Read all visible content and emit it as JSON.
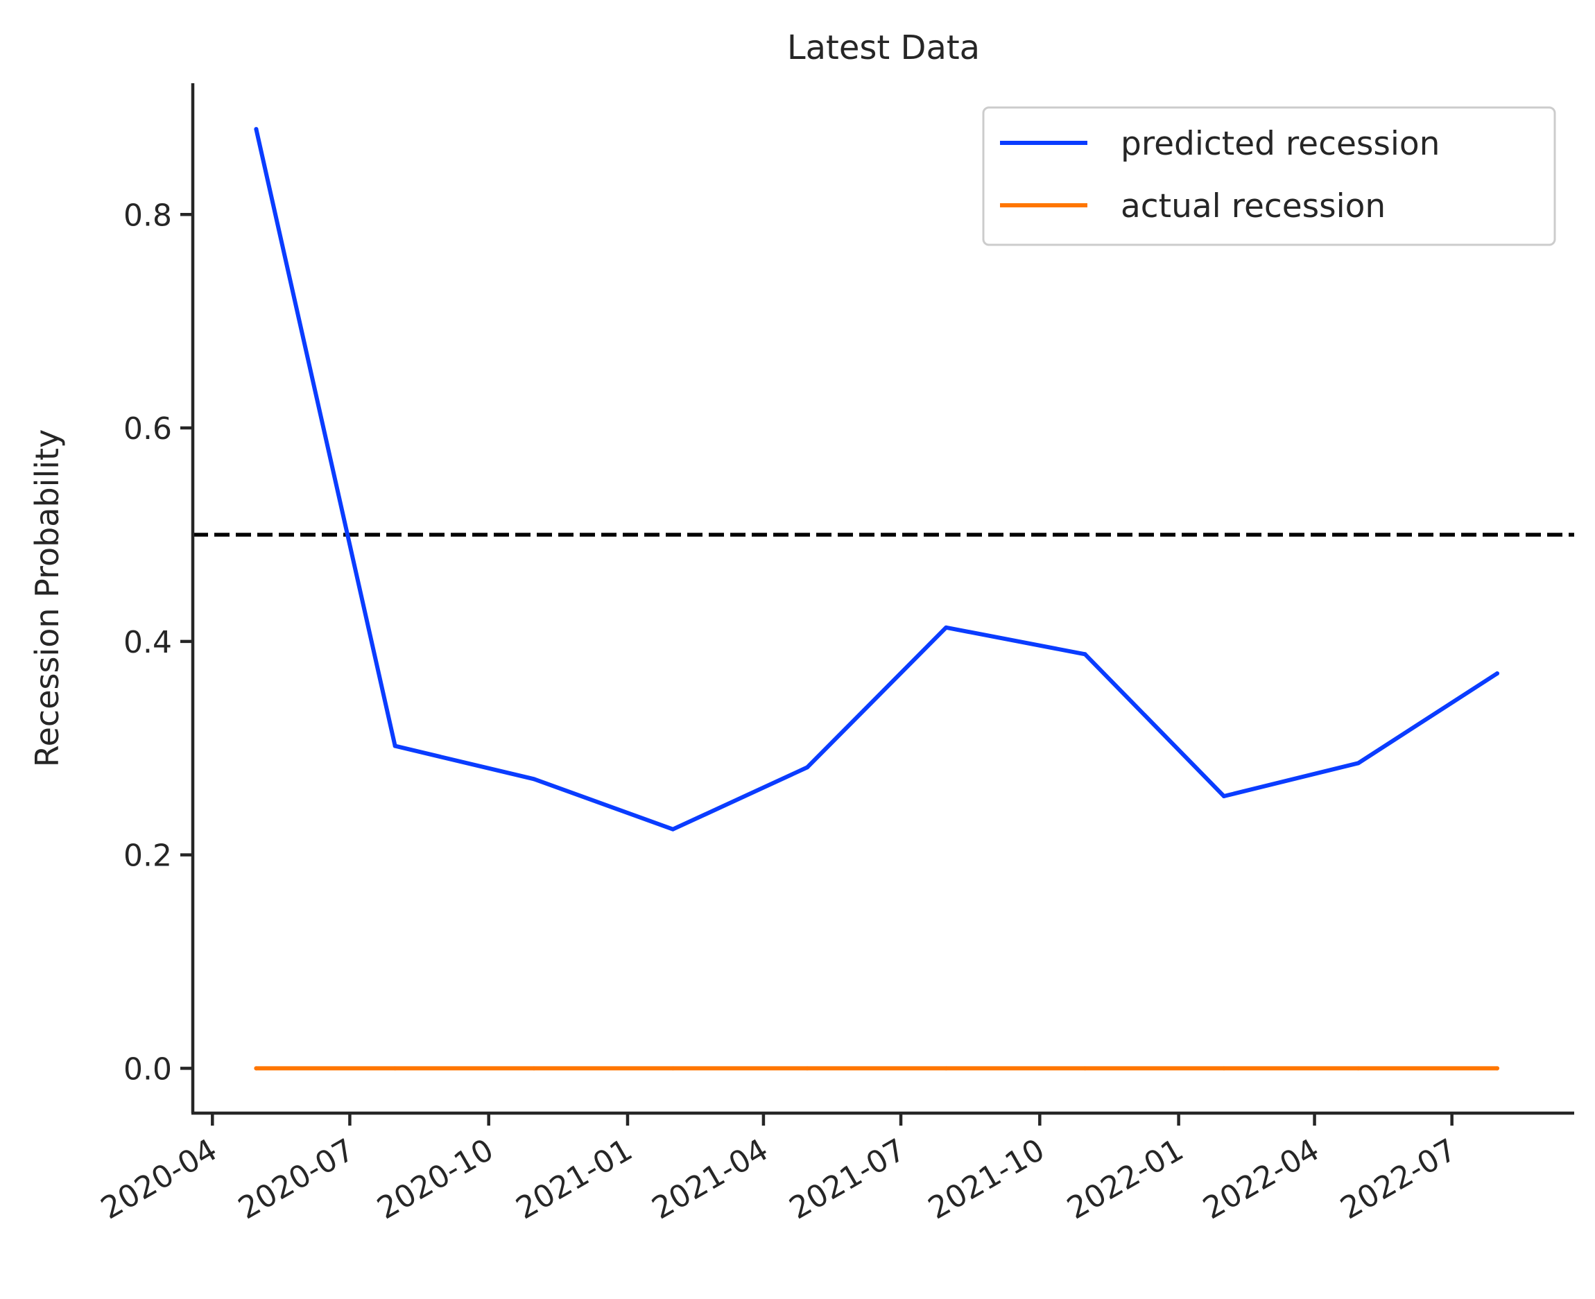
{
  "chart_data": {
    "type": "line",
    "title": "Latest Data",
    "xlabel": "",
    "ylabel": "Recession Probability",
    "x": [
      "2020-04-30",
      "2020-07-31",
      "2020-10-31",
      "2021-01-31",
      "2021-04-30",
      "2021-07-31",
      "2021-10-31",
      "2022-01-31",
      "2022-04-30",
      "2022-07-31"
    ],
    "series": [
      {
        "name": "predicted recession",
        "color": "#0a3cff",
        "values": [
          0.88,
          0.302,
          0.271,
          0.224,
          0.282,
          0.413,
          0.388,
          0.255,
          0.286,
          0.37
        ]
      },
      {
        "name": "actual recession",
        "color": "#ff7600",
        "values": [
          0,
          0,
          0,
          0,
          0,
          0,
          0,
          0,
          0,
          0
        ]
      }
    ],
    "threshold": {
      "value": 0.5,
      "style": "dashed",
      "color": "#000000"
    },
    "xticks": [
      "2020-04",
      "2020-07",
      "2020-10",
      "2021-01",
      "2021-04",
      "2021-07",
      "2021-10",
      "2022-01",
      "2022-04",
      "2022-07"
    ],
    "xtick_dates": [
      "2020-04-01",
      "2020-07-01",
      "2020-10-01",
      "2021-01-01",
      "2021-04-01",
      "2021-07-01",
      "2021-10-01",
      "2022-01-01",
      "2022-04-01",
      "2022-07-01"
    ],
    "yticks": [
      "0.0",
      "0.2",
      "0.4",
      "0.6",
      "0.8"
    ],
    "ytick_values": [
      0,
      0.2,
      0.4,
      0.6,
      0.8
    ],
    "xlim": [
      "2020-03-19",
      "2022-09-20"
    ],
    "ylim": [
      -0.042,
      0.923
    ],
    "grid": false,
    "legend_position": "upper right"
  }
}
